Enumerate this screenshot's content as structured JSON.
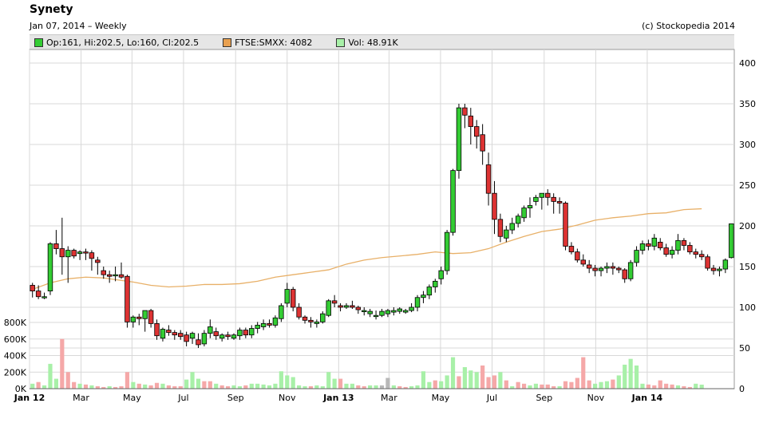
{
  "header": {
    "title": "Synety",
    "subtitle": "Jan 07, 2014  – Weekly",
    "copyright": "(c) Stockopedia 2014"
  },
  "legend": {
    "ohlc": "Op:161, Hi:202.5, Lo:160, Cl:202.5",
    "index": "FTSE:SMXX: 4082",
    "volume": "Vol: 48.91K"
  },
  "colors": {
    "up": "#33cc33",
    "down": "#dd3333",
    "index_line": "#e8b068",
    "vol_up": "#a8f0a8",
    "vol_down": "#f5a8a8",
    "vol_neutral": "#b8b8b8",
    "grid": "#d8d8d8",
    "legend_ohlc": "#33cc33",
    "legend_index": "#e8a050",
    "legend_vol": "#a8f0a8"
  },
  "chart_data": {
    "type": "candlestick",
    "price_axis": {
      "ticks": [
        50,
        100,
        150,
        200,
        250,
        300,
        350,
        400
      ],
      "range": [
        0,
        420
      ]
    },
    "volume_axis": {
      "ticks": [
        "0K",
        "200K",
        "400K",
        "600K",
        "800K"
      ],
      "values": [
        0,
        200000,
        400000,
        600000,
        800000
      ]
    },
    "x_axis": {
      "labels": [
        {
          "text": "Jan 12",
          "week": 0,
          "bold": true
        },
        {
          "text": "Mar",
          "week": 8.7,
          "bold": false
        },
        {
          "text": "May",
          "week": 17.3,
          "bold": false
        },
        {
          "text": "Jul",
          "week": 26,
          "bold": false
        },
        {
          "text": "Sep",
          "week": 34.8,
          "bold": false
        },
        {
          "text": "Nov",
          "week": 43.5,
          "bold": false
        },
        {
          "text": "Jan 13",
          "week": 52.2,
          "bold": true
        },
        {
          "text": "Mar",
          "week": 60.7,
          "bold": false
        },
        {
          "text": "May",
          "week": 69.4,
          "bold": false
        },
        {
          "text": "Jul",
          "week": 78.1,
          "bold": false
        },
        {
          "text": "Sep",
          "week": 86.9,
          "bold": false
        },
        {
          "text": "Nov",
          "week": 95.6,
          "bold": false
        },
        {
          "text": "Jan 14",
          "week": 104.3,
          "bold": true
        }
      ]
    },
    "candles": [
      [
        127,
        130,
        112,
        120
      ],
      [
        120,
        127,
        110,
        113
      ],
      [
        113,
        118,
        110,
        113
      ],
      [
        120,
        180,
        115,
        178
      ],
      [
        178,
        195,
        165,
        172
      ],
      [
        172,
        210,
        140,
        162
      ],
      [
        162,
        175,
        130,
        170
      ],
      [
        170,
        172,
        160,
        163
      ],
      [
        166,
        170,
        158,
        168
      ],
      [
        168,
        172,
        158,
        167
      ],
      [
        167,
        170,
        145,
        160
      ],
      [
        158,
        162,
        140,
        155
      ],
      [
        145,
        150,
        135,
        140
      ],
      [
        140,
        145,
        130,
        138
      ],
      [
        140,
        150,
        132,
        140
      ],
      [
        140,
        155,
        135,
        137
      ],
      [
        138,
        140,
        75,
        82
      ],
      [
        82,
        90,
        75,
        88
      ],
      [
        88,
        92,
        78,
        86
      ],
      [
        86,
        95,
        70,
        96
      ],
      [
        96,
        98,
        75,
        80
      ],
      [
        80,
        85,
        60,
        65
      ],
      [
        62,
        75,
        58,
        73
      ],
      [
        72,
        78,
        65,
        69
      ],
      [
        69,
        72,
        60,
        66
      ],
      [
        68,
        72,
        60,
        64
      ],
      [
        66,
        70,
        52,
        58
      ],
      [
        62,
        70,
        55,
        68
      ],
      [
        60,
        68,
        50,
        54
      ],
      [
        55,
        72,
        52,
        68
      ],
      [
        68,
        85,
        62,
        76
      ],
      [
        70,
        75,
        60,
        65
      ],
      [
        62,
        68,
        58,
        66
      ],
      [
        66,
        70,
        60,
        64
      ],
      [
        62,
        68,
        60,
        66
      ],
      [
        65,
        75,
        60,
        72
      ],
      [
        72,
        75,
        62,
        66
      ],
      [
        66,
        78,
        62,
        74
      ],
      [
        74,
        82,
        68,
        78
      ],
      [
        76,
        85,
        72,
        80
      ],
      [
        80,
        85,
        75,
        78
      ],
      [
        78,
        90,
        75,
        87
      ],
      [
        86,
        105,
        82,
        102
      ],
      [
        105,
        130,
        100,
        122
      ],
      [
        122,
        125,
        95,
        100
      ],
      [
        100,
        105,
        85,
        88
      ],
      [
        88,
        90,
        80,
        84
      ],
      [
        84,
        88,
        75,
        82
      ],
      [
        80,
        85,
        75,
        82
      ],
      [
        82,
        95,
        80,
        92
      ],
      [
        90,
        110,
        88,
        108
      ],
      [
        108,
        115,
        100,
        105
      ],
      [
        102,
        105,
        95,
        100
      ],
      [
        100,
        105,
        98,
        102
      ],
      [
        102,
        108,
        98,
        100
      ],
      [
        100,
        102,
        92,
        97
      ],
      [
        95,
        100,
        90,
        96
      ],
      [
        92,
        98,
        88,
        95
      ],
      [
        90,
        96,
        85,
        90
      ],
      [
        90,
        98,
        88,
        95
      ],
      [
        92,
        98,
        88,
        96
      ],
      [
        94,
        100,
        90,
        96
      ],
      [
        95,
        100,
        92,
        98
      ],
      [
        94,
        98,
        92,
        96
      ],
      [
        96,
        105,
        94,
        100
      ],
      [
        100,
        115,
        95,
        112
      ],
      [
        112,
        120,
        105,
        115
      ],
      [
        115,
        128,
        110,
        125
      ],
      [
        125,
        135,
        118,
        132
      ],
      [
        135,
        150,
        128,
        145
      ],
      [
        145,
        195,
        140,
        192
      ],
      [
        192,
        270,
        188,
        268
      ],
      [
        268,
        350,
        258,
        345
      ],
      [
        345,
        350,
        320,
        336
      ],
      [
        335,
        345,
        300,
        322
      ],
      [
        322,
        330,
        295,
        310
      ],
      [
        312,
        325,
        275,
        292
      ],
      [
        275,
        290,
        225,
        240
      ],
      [
        240,
        255,
        190,
        208
      ],
      [
        208,
        215,
        180,
        187
      ],
      [
        185,
        200,
        180,
        195
      ],
      [
        195,
        210,
        190,
        203
      ],
      [
        203,
        215,
        198,
        212
      ],
      [
        210,
        225,
        205,
        222
      ],
      [
        222,
        235,
        210,
        225
      ],
      [
        230,
        238,
        225,
        235
      ],
      [
        235,
        240,
        220,
        240
      ],
      [
        240,
        245,
        225,
        235
      ],
      [
        235,
        240,
        215,
        230
      ],
      [
        230,
        235,
        215,
        228
      ],
      [
        228,
        230,
        170,
        175
      ],
      [
        175,
        180,
        165,
        168
      ],
      [
        168,
        172,
        155,
        158
      ],
      [
        158,
        165,
        150,
        153
      ],
      [
        152,
        158,
        142,
        148
      ],
      [
        148,
        152,
        138,
        145
      ],
      [
        145,
        150,
        138,
        148
      ],
      [
        148,
        155,
        142,
        150
      ],
      [
        150,
        155,
        140,
        148
      ],
      [
        148,
        150,
        142,
        146
      ],
      [
        146,
        148,
        130,
        135
      ],
      [
        135,
        158,
        132,
        155
      ],
      [
        155,
        175,
        150,
        170
      ],
      [
        170,
        182,
        165,
        178
      ],
      [
        178,
        183,
        170,
        175
      ],
      [
        175,
        190,
        170,
        185
      ],
      [
        180,
        185,
        170,
        173
      ],
      [
        173,
        178,
        162,
        165
      ],
      [
        165,
        175,
        160,
        170
      ],
      [
        170,
        190,
        165,
        182
      ],
      [
        182,
        185,
        170,
        176
      ],
      [
        176,
        180,
        165,
        168
      ],
      [
        168,
        172,
        160,
        165
      ],
      [
        165,
        170,
        158,
        162
      ],
      [
        162,
        165,
        145,
        148
      ],
      [
        148,
        152,
        140,
        145
      ],
      [
        145,
        150,
        138,
        147
      ],
      [
        147,
        160,
        142,
        158
      ],
      [
        161,
        202.5,
        160,
        202.5
      ]
    ],
    "volume": [
      [
        60,
        1
      ],
      [
        80,
        0
      ],
      [
        40,
        1
      ],
      [
        300,
        1
      ],
      [
        120,
        1
      ],
      [
        600,
        0
      ],
      [
        200,
        0
      ],
      [
        80,
        0
      ],
      [
        60,
        1
      ],
      [
        50,
        0
      ],
      [
        40,
        1
      ],
      [
        30,
        0
      ],
      [
        20,
        0
      ],
      [
        30,
        1
      ],
      [
        20,
        0
      ],
      [
        30,
        0
      ],
      [
        200,
        0
      ],
      [
        80,
        1
      ],
      [
        60,
        0
      ],
      [
        50,
        1
      ],
      [
        40,
        0
      ],
      [
        70,
        0
      ],
      [
        60,
        1
      ],
      [
        40,
        0
      ],
      [
        30,
        0
      ],
      [
        30,
        0
      ],
      [
        110,
        1
      ],
      [
        200,
        1
      ],
      [
        120,
        1
      ],
      [
        90,
        0
      ],
      [
        90,
        0
      ],
      [
        60,
        1
      ],
      [
        40,
        0
      ],
      [
        30,
        0
      ],
      [
        40,
        1
      ],
      [
        30,
        1
      ],
      [
        40,
        0
      ],
      [
        60,
        1
      ],
      [
        60,
        1
      ],
      [
        50,
        1
      ],
      [
        40,
        1
      ],
      [
        60,
        1
      ],
      [
        210,
        1
      ],
      [
        160,
        1
      ],
      [
        140,
        1
      ],
      [
        40,
        1
      ],
      [
        30,
        1
      ],
      [
        30,
        0
      ],
      [
        40,
        1
      ],
      [
        30,
        1
      ],
      [
        200,
        1
      ],
      [
        120,
        1
      ],
      [
        120,
        0
      ],
      [
        60,
        1
      ],
      [
        60,
        1
      ],
      [
        40,
        0
      ],
      [
        30,
        0
      ],
      [
        40,
        1
      ],
      [
        40,
        1
      ],
      [
        40,
        2
      ],
      [
        130,
        2
      ],
      [
        40,
        1
      ],
      [
        30,
        0
      ],
      [
        20,
        0
      ],
      [
        30,
        1
      ],
      [
        40,
        1
      ],
      [
        210,
        1
      ],
      [
        80,
        1
      ],
      [
        100,
        0
      ],
      [
        90,
        1
      ],
      [
        160,
        1
      ],
      [
        380,
        1
      ],
      [
        150,
        0
      ],
      [
        260,
        1
      ],
      [
        220,
        1
      ],
      [
        200,
        1
      ],
      [
        280,
        0
      ],
      [
        140,
        0
      ],
      [
        160,
        0
      ],
      [
        200,
        1
      ],
      [
        100,
        0
      ],
      [
        30,
        1
      ],
      [
        80,
        0
      ],
      [
        60,
        0
      ],
      [
        40,
        1
      ],
      [
        60,
        1
      ],
      [
        50,
        0
      ],
      [
        50,
        0
      ],
      [
        30,
        0
      ],
      [
        30,
        1
      ],
      [
        90,
        0
      ],
      [
        80,
        0
      ],
      [
        130,
        0
      ],
      [
        380,
        0
      ],
      [
        100,
        0
      ],
      [
        60,
        1
      ],
      [
        80,
        1
      ],
      [
        90,
        1
      ],
      [
        110,
        0
      ],
      [
        160,
        1
      ],
      [
        290,
        1
      ],
      [
        360,
        1
      ],
      [
        280,
        1
      ],
      [
        60,
        1
      ],
      [
        50,
        0
      ],
      [
        40,
        0
      ],
      [
        100,
        0
      ],
      [
        60,
        0
      ],
      [
        50,
        0
      ],
      [
        40,
        1
      ],
      [
        30,
        0
      ],
      [
        20,
        0
      ],
      [
        60,
        1
      ],
      [
        48.9,
        1
      ]
    ],
    "index_line": [
      [
        0,
        122
      ],
      [
        3,
        130
      ],
      [
        6,
        135
      ],
      [
        9,
        137
      ],
      [
        12,
        136
      ],
      [
        15,
        133
      ],
      [
        17,
        131
      ],
      [
        20,
        127
      ],
      [
        23,
        125
      ],
      [
        26,
        126
      ],
      [
        29,
        128
      ],
      [
        32,
        128
      ],
      [
        35,
        129
      ],
      [
        38,
        132
      ],
      [
        41,
        137
      ],
      [
        44,
        140
      ],
      [
        47,
        143
      ],
      [
        50,
        146
      ],
      [
        53,
        153
      ],
      [
        56,
        158
      ],
      [
        59,
        161
      ],
      [
        62,
        163
      ],
      [
        65,
        165
      ],
      [
        68,
        168
      ],
      [
        71,
        166
      ],
      [
        74,
        167
      ],
      [
        77,
        172
      ],
      [
        80,
        180
      ],
      [
        83,
        187
      ],
      [
        86,
        193
      ],
      [
        89,
        196
      ],
      [
        92,
        201
      ],
      [
        95,
        207
      ],
      [
        98,
        210
      ],
      [
        101,
        212
      ],
      [
        104,
        215
      ],
      [
        107,
        216
      ],
      [
        110,
        220
      ],
      [
        113,
        221
      ]
    ]
  }
}
